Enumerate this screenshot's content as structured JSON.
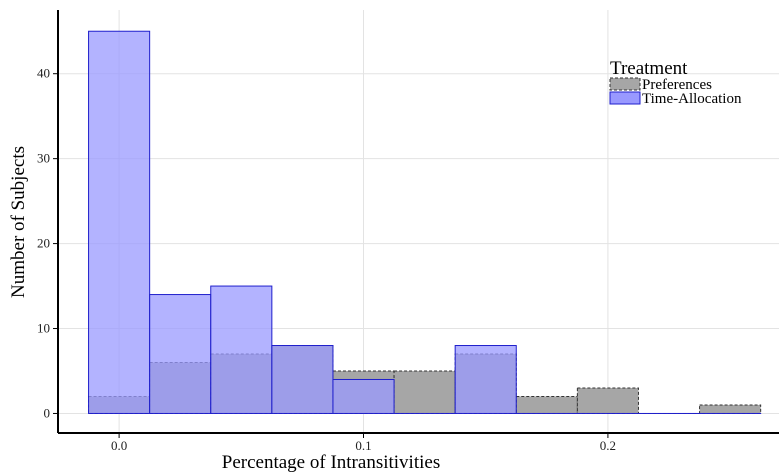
{
  "chart_data": {
    "type": "bar",
    "xlabel": "Percentage of Intransitivities",
    "ylabel": "Number of Subjects",
    "xlim": [
      -0.025,
      0.27
    ],
    "ylim": [
      -2.3,
      47.5
    ],
    "x_ticks": [
      0.0,
      0.1,
      0.2
    ],
    "x_tick_labels": [
      "0.0",
      "0.1",
      "0.2"
    ],
    "y_ticks": [
      0,
      10,
      20,
      30,
      40
    ],
    "y_tick_labels": [
      "0",
      "10",
      "20",
      "30",
      "40"
    ],
    "grid": true,
    "bin_width": 0.025,
    "bin_starts": [
      -0.0125,
      0.0125,
      0.0375,
      0.0625,
      0.0875,
      0.1125,
      0.1375,
      0.1625,
      0.1875,
      0.2125,
      0.2375
    ],
    "legend": {
      "title": "Treatment",
      "placement": "top-right"
    },
    "series": [
      {
        "name": "Preferences",
        "values": [
          2,
          6,
          7,
          8,
          5,
          5,
          7,
          2,
          3,
          0,
          1
        ],
        "fill": "#a6a6a6",
        "stroke": "#333333",
        "dashed": true
      },
      {
        "name": "Time-Allocation",
        "values": [
          45,
          14,
          15,
          8,
          4,
          0,
          8,
          0,
          0,
          0,
          0
        ],
        "fill": "#9999ff",
        "stroke": "#1f1fcc",
        "dashed": false
      }
    ]
  }
}
